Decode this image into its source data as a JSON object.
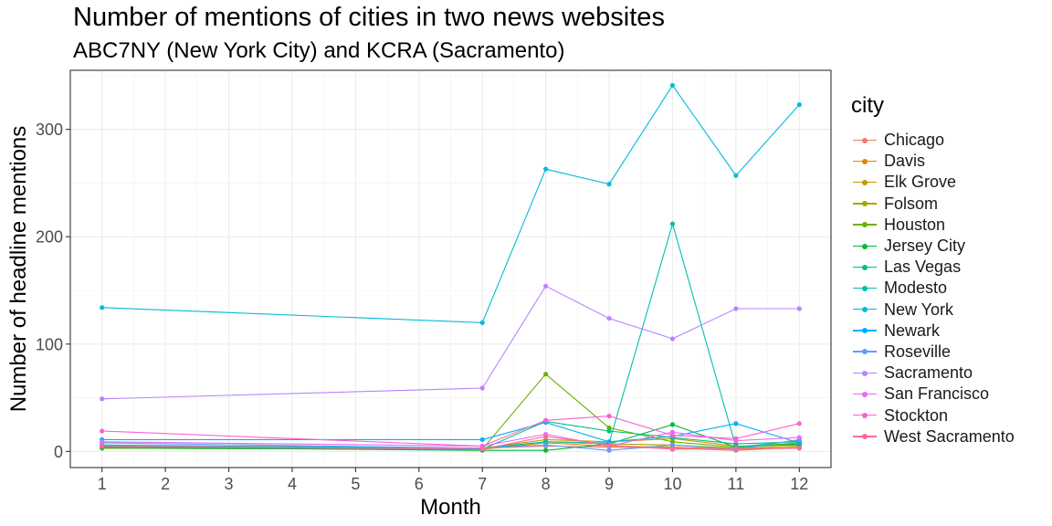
{
  "chart_data": {
    "type": "line",
    "title": "Number of mentions of cities in two news websites",
    "subtitle": "ABC7NY (New York City) and KCRA (Sacramento)",
    "xlabel": "Month",
    "ylabel": "Number of headline mentions",
    "x_ticks": [
      "1",
      "2",
      "3",
      "4",
      "5",
      "6",
      "7",
      "8",
      "9",
      "10",
      "11",
      "12"
    ],
    "y_ticks": [
      "0",
      "100",
      "200",
      "300"
    ],
    "xlim": [
      0.5,
      12.5
    ],
    "ylim": [
      -15,
      355
    ],
    "grid": true,
    "legend_title": "city",
    "legend_position": "right",
    "series": [
      {
        "name": "Chicago",
        "color": "#F8766D",
        "x": [
          1,
          7,
          8,
          9,
          10,
          11,
          12
        ],
        "y": [
          5,
          3,
          5,
          4,
          3,
          1,
          4
        ]
      },
      {
        "name": "Davis",
        "color": "#E58700",
        "x": [
          1,
          7,
          8,
          9,
          10,
          11,
          12
        ],
        "y": [
          3,
          2,
          8,
          5,
          4,
          2,
          3
        ]
      },
      {
        "name": "Elk Grove",
        "color": "#C99800",
        "x": [
          1,
          7,
          8,
          9,
          10,
          11,
          12
        ],
        "y": [
          4,
          3,
          11,
          9,
          12,
          5,
          6
        ]
      },
      {
        "name": "Folsom",
        "color": "#A3A500",
        "x": [
          1,
          7,
          8,
          9,
          10,
          11,
          12
        ],
        "y": [
          3,
          2,
          9,
          7,
          6,
          3,
          5
        ]
      },
      {
        "name": "Houston",
        "color": "#6BB100",
        "x": [
          1,
          7,
          8,
          9,
          10,
          11,
          12
        ],
        "y": [
          3,
          2,
          72,
          22,
          9,
          4,
          8
        ]
      },
      {
        "name": "Jersey City",
        "color": "#00BA38",
        "x": [
          1,
          7,
          8,
          9,
          10,
          11,
          12
        ],
        "y": [
          4,
          1,
          1,
          7,
          25,
          4,
          7
        ]
      },
      {
        "name": "Las Vegas",
        "color": "#00BF7D",
        "x": [
          1,
          7,
          8,
          9,
          10,
          11,
          12
        ],
        "y": [
          4,
          2,
          28,
          19,
          13,
          7,
          9
        ]
      },
      {
        "name": "Modesto",
        "color": "#00C0AF",
        "x": [
          1,
          7,
          8,
          9,
          10,
          11,
          12
        ],
        "y": [
          6,
          3,
          9,
          8,
          212,
          4,
          10
        ]
      },
      {
        "name": "New York",
        "color": "#00BCD8",
        "x": [
          1,
          7,
          8,
          9,
          10,
          11,
          12
        ],
        "y": [
          134,
          120,
          263,
          249,
          341,
          257,
          323
        ]
      },
      {
        "name": "Newark",
        "color": "#00B0F6",
        "x": [
          1,
          7,
          8,
          9,
          10,
          11,
          12
        ],
        "y": [
          11,
          11,
          27,
          9,
          14,
          26,
          8
        ]
      },
      {
        "name": "Roseville",
        "color": "#619CFF",
        "x": [
          1,
          7,
          8,
          9,
          10,
          11,
          12
        ],
        "y": [
          8,
          3,
          6,
          1,
          6,
          2,
          11
        ]
      },
      {
        "name": "Sacramento",
        "color": "#B983FF",
        "x": [
          1,
          7,
          8,
          9,
          10,
          11,
          12
        ],
        "y": [
          49,
          59,
          154,
          124,
          105,
          133,
          133
        ]
      },
      {
        "name": "San Francisco",
        "color": "#E76BF3",
        "x": [
          1,
          7,
          8,
          9,
          10,
          11,
          12
        ],
        "y": [
          9,
          5,
          16,
          5,
          18,
          10,
          13
        ]
      },
      {
        "name": "Stockton",
        "color": "#FD61D1",
        "x": [
          1,
          7,
          8,
          9,
          10,
          11,
          12
        ],
        "y": [
          19,
          5,
          29,
          33,
          15,
          12,
          26
        ]
      },
      {
        "name": "West Sacramento",
        "color": "#FF67A4",
        "x": [
          1,
          7,
          8,
          9,
          10,
          11,
          12
        ],
        "y": [
          5,
          2,
          14,
          6,
          2,
          3,
          3
        ]
      }
    ]
  }
}
